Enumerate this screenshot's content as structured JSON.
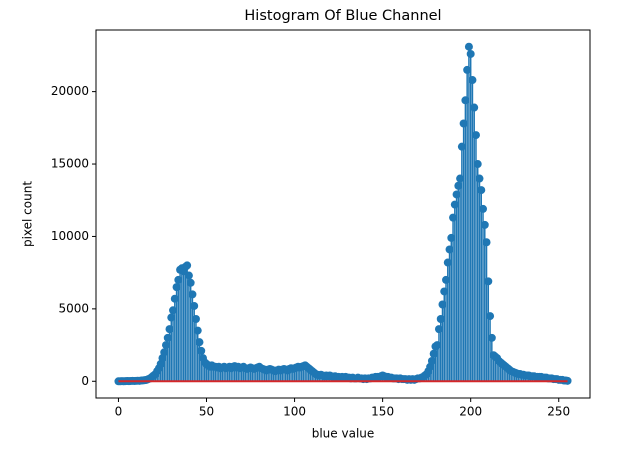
{
  "chart_data": {
    "type": "stem",
    "title": "Histogram Of Blue Channel",
    "xlabel": "blue value",
    "ylabel": "pixel count",
    "color": "#1f77b4",
    "baseline_color": "#d62728",
    "xlim": [
      -12.75,
      267.75
    ],
    "xticks": [
      0,
      50,
      100,
      150,
      200,
      250
    ],
    "ylim": [
      -1155,
      24255
    ],
    "yticks": [
      0,
      5000,
      10000,
      15000,
      20000
    ],
    "x": [
      0,
      1,
      2,
      3,
      4,
      5,
      6,
      7,
      8,
      9,
      10,
      11,
      12,
      13,
      14,
      15,
      16,
      17,
      18,
      19,
      20,
      21,
      22,
      23,
      24,
      25,
      26,
      27,
      28,
      29,
      30,
      31,
      32,
      33,
      34,
      35,
      36,
      37,
      38,
      39,
      40,
      41,
      42,
      43,
      44,
      45,
      46,
      47,
      48,
      49,
      50,
      51,
      52,
      53,
      54,
      55,
      56,
      57,
      58,
      59,
      60,
      61,
      62,
      63,
      64,
      65,
      66,
      67,
      68,
      69,
      70,
      71,
      72,
      73,
      74,
      75,
      76,
      77,
      78,
      79,
      80,
      81,
      82,
      83,
      84,
      85,
      86,
      87,
      88,
      89,
      90,
      91,
      92,
      93,
      94,
      95,
      96,
      97,
      98,
      99,
      100,
      101,
      102,
      103,
      104,
      105,
      106,
      107,
      108,
      109,
      110,
      111,
      112,
      113,
      114,
      115,
      116,
      117,
      118,
      119,
      120,
      121,
      122,
      123,
      124,
      125,
      126,
      127,
      128,
      129,
      130,
      131,
      132,
      133,
      134,
      135,
      136,
      137,
      138,
      139,
      140,
      141,
      142,
      143,
      144,
      145,
      146,
      147,
      148,
      149,
      150,
      151,
      152,
      153,
      154,
      155,
      156,
      157,
      158,
      159,
      160,
      161,
      162,
      163,
      164,
      165,
      166,
      167,
      168,
      169,
      170,
      171,
      172,
      173,
      174,
      175,
      176,
      177,
      178,
      179,
      180,
      181,
      182,
      183,
      184,
      185,
      186,
      187,
      188,
      189,
      190,
      191,
      192,
      193,
      194,
      195,
      196,
      197,
      198,
      199,
      200,
      201,
      202,
      203,
      204,
      205,
      206,
      207,
      208,
      209,
      210,
      211,
      212,
      213,
      214,
      215,
      216,
      217,
      218,
      219,
      220,
      221,
      222,
      223,
      224,
      225,
      226,
      227,
      228,
      229,
      230,
      231,
      232,
      233,
      234,
      235,
      236,
      237,
      238,
      239,
      240,
      241,
      242,
      243,
      244,
      245,
      246,
      247,
      248,
      249,
      250,
      251,
      252,
      253,
      254,
      255
    ],
    "values": [
      0,
      0,
      10,
      0,
      10,
      20,
      10,
      20,
      30,
      20,
      30,
      40,
      30,
      50,
      60,
      80,
      100,
      150,
      200,
      300,
      400,
      500,
      700,
      900,
      1200,
      1600,
      2000,
      2500,
      3000,
      3600,
      4400,
      4900,
      5700,
      6500,
      7000,
      7700,
      7800,
      7600,
      7900,
      8000,
      7300,
      6800,
      6000,
      5200,
      4300,
      3500,
      2700,
      2100,
      1600,
      1300,
      1200,
      1100,
      1000,
      1100,
      1000,
      1000,
      950,
      1000,
      900,
      950,
      1000,
      900,
      950,
      1000,
      900,
      1000,
      1050,
      950,
      1000,
      900,
      950,
      1000,
      900,
      850,
      900,
      950,
      900,
      850,
      900,
      950,
      1000,
      900,
      850,
      800,
      750,
      800,
      850,
      800,
      750,
      700,
      750,
      800,
      750,
      800,
      850,
      800,
      750,
      850,
      900,
      850,
      900,
      950,
      1000,
      950,
      1000,
      1050,
      1100,
      1000,
      900,
      800,
      700,
      600,
      500,
      450,
      400,
      450,
      400,
      350,
      400,
      350,
      400,
      350,
      300,
      350,
      300,
      300,
      250,
      300,
      250,
      300,
      250,
      250,
      200,
      250,
      200,
      200,
      250,
      200,
      200,
      150,
      200,
      150,
      200,
      200,
      250,
      250,
      300,
      300,
      300,
      350,
      400,
      350,
      300,
      300,
      250,
      250,
      200,
      200,
      200,
      150,
      200,
      150,
      150,
      150,
      100,
      150,
      100,
      150,
      100,
      150,
      200,
      200,
      250,
      300,
      400,
      500,
      700,
      1000,
      1400,
      1900,
      2400,
      2500,
      3600,
      4300,
      5300,
      6200,
      7000,
      8200,
      9100,
      9900,
      11300,
      12200,
      12900,
      13500,
      14000,
      16200,
      17800,
      19400,
      21500,
      23100,
      22600,
      20800,
      18900,
      17000,
      15000,
      14000,
      13200,
      11900,
      10800,
      9600,
      6900,
      4500,
      3000,
      1800,
      1700,
      1600,
      1400,
      1300,
      1200,
      1100,
      1000,
      900,
      800,
      700,
      650,
      600,
      550,
      500,
      500,
      450,
      450,
      400,
      400,
      400,
      350,
      350,
      350,
      300,
      300,
      300,
      300,
      250,
      250,
      250,
      200,
      200,
      200,
      150,
      150,
      150,
      100,
      100,
      100,
      50,
      50,
      30
    ]
  }
}
